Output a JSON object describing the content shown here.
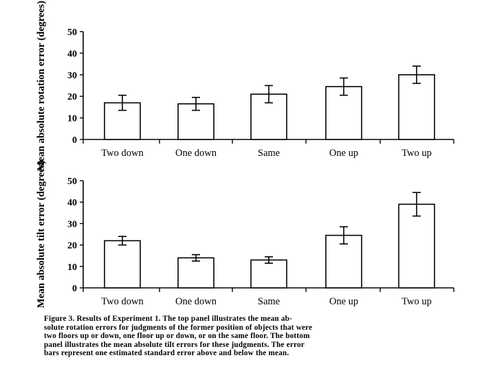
{
  "chart_data": [
    {
      "type": "bar",
      "categories": [
        "Two down",
        "One down",
        "Same",
        "One up",
        "Two up"
      ],
      "values": [
        17,
        16.5,
        21,
        24.5,
        30
      ],
      "errors": [
        3.5,
        3,
        4,
        4,
        4
      ],
      "ylabel": "Mean absolute rotation error (degrees)",
      "ylim": [
        0,
        50
      ],
      "yticks": [
        "0",
        "10",
        "20",
        "30",
        "40",
        "50"
      ]
    },
    {
      "type": "bar",
      "categories": [
        "Two down",
        "One down",
        "Same",
        "One up",
        "Two up"
      ],
      "values": [
        22,
        14,
        13,
        24.5,
        39
      ],
      "errors": [
        2,
        1.5,
        1.5,
        4,
        5.5
      ],
      "ylabel": "Mean absolute tilt error (degrees)",
      "ylim": [
        0,
        50
      ],
      "yticks": [
        "0",
        "10",
        "20",
        "30",
        "40",
        "50"
      ]
    }
  ],
  "caption": [
    "Figure 3. Results of Experiment 1. The top panel illustrates the mean ab-",
    "solute rotation errors for judgments of the former position of objects that were",
    "two floors up or down, one floor up or down, or on the same floor. The bottom",
    "panel illustrates the mean absolute tilt errors for these judgments. The error",
    "bars represent one estimated standard error above and below the mean."
  ]
}
